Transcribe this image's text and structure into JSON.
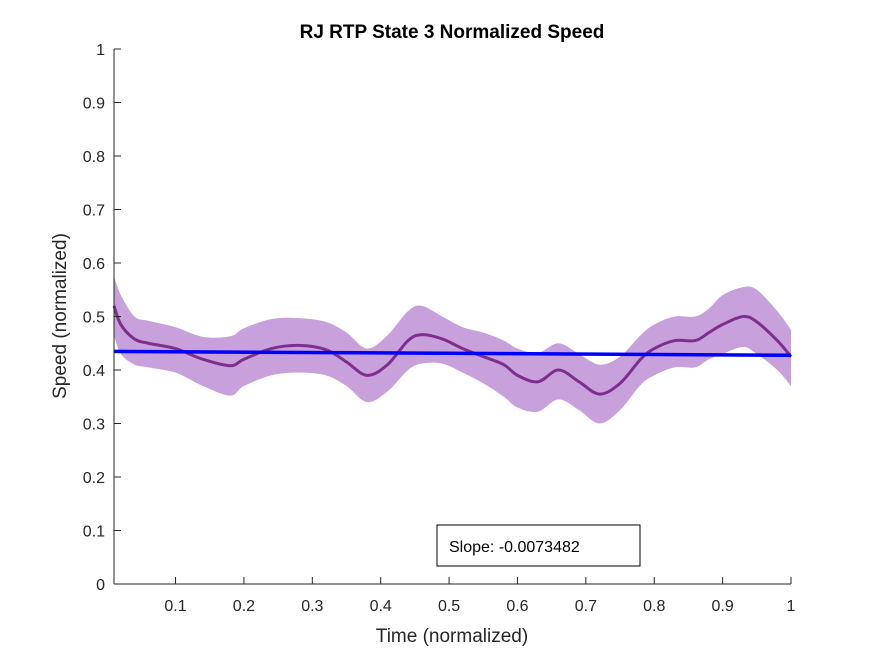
{
  "chart_data": {
    "type": "line",
    "title": "RJ  RTP State 3 Normalized Speed",
    "xlabel": "Time (normalized)",
    "ylabel": "Speed (normalized)",
    "xlim": [
      0.01,
      1
    ],
    "ylim": [
      0,
      1
    ],
    "xticks": [
      0.1,
      0.2,
      0.3,
      0.4,
      0.5,
      0.6,
      0.7,
      0.8,
      0.9,
      1
    ],
    "xtick_labels": [
      "0.1",
      "0.2",
      "0.3",
      "0.4",
      "0.5",
      "0.6",
      "0.7",
      "0.8",
      "0.9",
      "1"
    ],
    "yticks": [
      0,
      0.1,
      0.2,
      0.3,
      0.4,
      0.5,
      0.6,
      0.7,
      0.8,
      0.9,
      1
    ],
    "ytick_labels": [
      "0",
      "0.1",
      "0.2",
      "0.3",
      "0.4",
      "0.5",
      "0.6",
      "0.7",
      "0.8",
      "0.9",
      "1"
    ],
    "grid": false,
    "series": [
      {
        "role": "mean",
        "color": "#7e2f8e",
        "x": [
          0.01,
          0.02,
          0.04,
          0.06,
          0.1,
          0.14,
          0.18,
          0.2,
          0.24,
          0.28,
          0.32,
          0.35,
          0.38,
          0.41,
          0.44,
          0.46,
          0.49,
          0.52,
          0.55,
          0.58,
          0.6,
          0.63,
          0.66,
          0.69,
          0.72,
          0.75,
          0.78,
          0.8,
          0.83,
          0.86,
          0.88,
          0.9,
          0.93,
          0.95,
          0.98,
          1.0
        ],
        "y": [
          0.52,
          0.485,
          0.458,
          0.45,
          0.44,
          0.42,
          0.408,
          0.42,
          0.44,
          0.446,
          0.438,
          0.415,
          0.39,
          0.41,
          0.455,
          0.466,
          0.458,
          0.44,
          0.425,
          0.41,
          0.39,
          0.378,
          0.4,
          0.378,
          0.355,
          0.375,
          0.42,
          0.44,
          0.455,
          0.455,
          0.47,
          0.485,
          0.5,
          0.49,
          0.455,
          0.425
        ]
      },
      {
        "role": "upper-bound",
        "color": "#c8a0dc",
        "x": [
          0.01,
          0.02,
          0.04,
          0.06,
          0.1,
          0.14,
          0.18,
          0.2,
          0.24,
          0.28,
          0.32,
          0.35,
          0.38,
          0.41,
          0.44,
          0.46,
          0.49,
          0.52,
          0.55,
          0.58,
          0.6,
          0.63,
          0.66,
          0.69,
          0.72,
          0.75,
          0.78,
          0.8,
          0.83,
          0.86,
          0.88,
          0.9,
          0.93,
          0.95,
          0.98,
          1.0
        ],
        "y": [
          0.575,
          0.54,
          0.5,
          0.492,
          0.48,
          0.462,
          0.463,
          0.478,
          0.495,
          0.497,
          0.49,
          0.47,
          0.44,
          0.465,
          0.51,
          0.52,
          0.5,
          0.48,
          0.47,
          0.455,
          0.44,
          0.432,
          0.45,
          0.43,
          0.41,
          0.425,
          0.465,
          0.485,
          0.5,
          0.5,
          0.515,
          0.54,
          0.555,
          0.55,
          0.51,
          0.475
        ]
      },
      {
        "role": "lower-bound",
        "color": "#c8a0dc",
        "x": [
          0.01,
          0.02,
          0.04,
          0.06,
          0.1,
          0.14,
          0.18,
          0.2,
          0.24,
          0.28,
          0.32,
          0.35,
          0.38,
          0.41,
          0.44,
          0.46,
          0.49,
          0.52,
          0.55,
          0.58,
          0.6,
          0.63,
          0.66,
          0.69,
          0.72,
          0.75,
          0.78,
          0.8,
          0.83,
          0.86,
          0.88,
          0.9,
          0.93,
          0.95,
          0.98,
          1.0
        ],
        "y": [
          0.465,
          0.43,
          0.41,
          0.405,
          0.395,
          0.37,
          0.352,
          0.37,
          0.39,
          0.395,
          0.39,
          0.37,
          0.34,
          0.36,
          0.4,
          0.412,
          0.412,
          0.395,
          0.375,
          0.35,
          0.33,
          0.322,
          0.345,
          0.325,
          0.3,
          0.325,
          0.372,
          0.39,
          0.405,
          0.405,
          0.42,
          0.43,
          0.443,
          0.43,
          0.4,
          0.37
        ]
      },
      {
        "role": "trend-line",
        "color": "#0000ff",
        "x": [
          0.01,
          1.0
        ],
        "y": [
          0.4348,
          0.4275
        ]
      }
    ],
    "annotations": [
      {
        "text": "Slope: -0.0073482",
        "position": "bottom-center"
      }
    ]
  }
}
